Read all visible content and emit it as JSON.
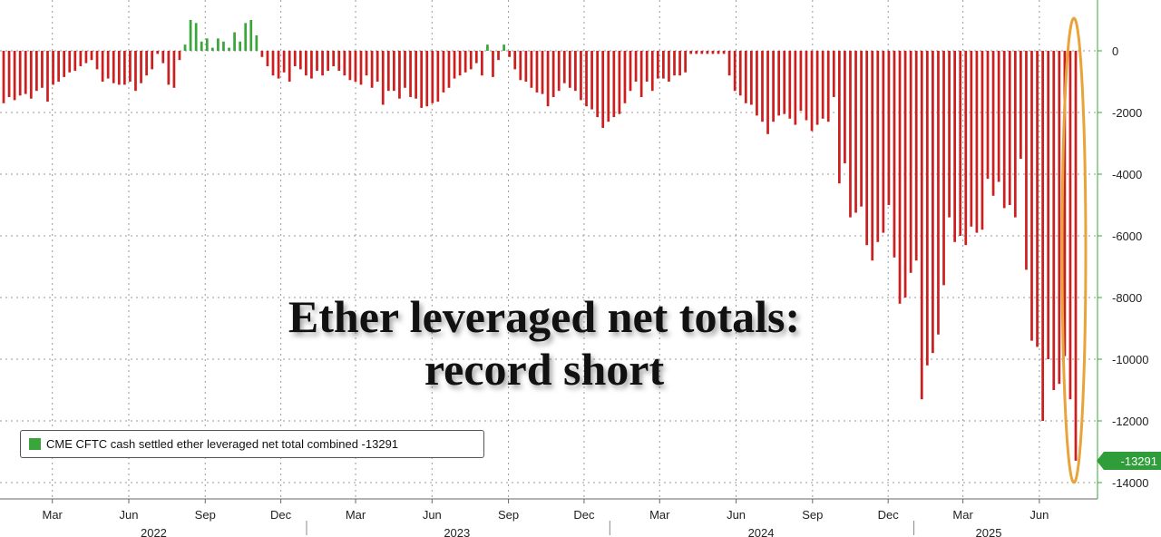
{
  "chart_data": {
    "type": "bar",
    "title": "Ether leveraged net totals:",
    "subtitle": "record short",
    "series": [
      {
        "name": "CME CFTC cash settled ether leveraged net total combined",
        "last_value_label": "-13291",
        "values": [
          -1700,
          -1500,
          -1600,
          -1450,
          -1400,
          -1550,
          -1300,
          -1200,
          -1650,
          -1100,
          -1000,
          -850,
          -700,
          -650,
          -500,
          -400,
          -300,
          -600,
          -1000,
          -900,
          -1050,
          -1100,
          -1100,
          -1000,
          -1300,
          -1050,
          -800,
          -600,
          -100,
          -400,
          -1100,
          -1200,
          -300,
          200,
          1000,
          900,
          300,
          400,
          100,
          400,
          300,
          100,
          600,
          300,
          900,
          1000,
          500,
          -200,
          -500,
          -800,
          -900,
          -700,
          -1000,
          -500,
          -600,
          -800,
          -900,
          -650,
          -800,
          -650,
          -500,
          -650,
          -800,
          -950,
          -1000,
          -1100,
          -800,
          -1200,
          -1000,
          -1750,
          -1300,
          -1300,
          -1550,
          -1200,
          -1500,
          -1550,
          -1850,
          -1800,
          -1700,
          -1650,
          -1350,
          -1200,
          -900,
          -800,
          -700,
          -600,
          -400,
          -800,
          200,
          -850,
          -300,
          200,
          -200,
          -600,
          -950,
          -1000,
          -1200,
          -1350,
          -1400,
          -1800,
          -1500,
          -1300,
          -1050,
          -1200,
          -1300,
          -1600,
          -1800,
          -1900,
          -2150,
          -2500,
          -2300,
          -2150,
          -2050,
          -1700,
          -1300,
          -1000,
          -1500,
          -1000,
          -1300,
          -900,
          -900,
          -1000,
          -800,
          -800,
          -700,
          -100,
          -100,
          -100,
          -100,
          -100,
          -100,
          -100,
          -800,
          -1300,
          -1450,
          -1700,
          -1750,
          -2100,
          -2300,
          -2700,
          -2300,
          -2100,
          -2050,
          -2200,
          -2400,
          -1950,
          -2250,
          -2600,
          -2400,
          -2200,
          -2300,
          -1500,
          -4300,
          -3650,
          -5400,
          -5250,
          -5050,
          -6300,
          -6800,
          -6200,
          -5900,
          -5000,
          -6700,
          -8200,
          -8000,
          -7200,
          -6800,
          -11300,
          -10200,
          -9800,
          -9200,
          -7600,
          -5400,
          -6200,
          -6000,
          -6300,
          -5700,
          -5900,
          -5800,
          -4150,
          -4700,
          -4250,
          -5100,
          -5000,
          -5400,
          -3500,
          -7100,
          -9400,
          -9600,
          -12000,
          -10000,
          -11000,
          -10800,
          -9900,
          -11300,
          -13291
        ],
        "color_negative": "#cc1f1f",
        "color_positive": "#3aa53a"
      }
    ],
    "ylim": [
      -14000,
      1000
    ],
    "yticks": [
      "0",
      "-2000",
      "-4000",
      "-6000",
      "-8000",
      "-10000",
      "-12000",
      "-14000"
    ],
    "ytick_values": [
      0,
      -2000,
      -4000,
      -6000,
      -8000,
      -10000,
      -12000,
      -14000
    ],
    "xticks": [
      "Mar",
      "Jun",
      "Sep",
      "Dec",
      "Mar",
      "Jun",
      "Sep",
      "Dec",
      "Mar",
      "Jun",
      "Sep",
      "Dec",
      "Mar",
      "Jun"
    ],
    "xtick_dates": [
      "2022-03-01",
      "2022-06-01",
      "2022-09-01",
      "2022-12-01",
      "2023-03-01",
      "2023-06-01",
      "2023-09-01",
      "2023-12-01",
      "2024-03-01",
      "2024-06-01",
      "2024-09-01",
      "2024-12-01",
      "2025-03-01",
      "2025-06-01"
    ],
    "years": [
      "2022",
      "2023",
      "2024",
      "2025"
    ],
    "year_dates": [
      "2022-07-01",
      "2023-07-01",
      "2024-07-01",
      "2025-04-01"
    ],
    "x_start": "2021-12-28",
    "x_end": "2025-08-10",
    "grid": true,
    "legend_position": "bottom-left",
    "highlight": "latest bars circled in orange"
  },
  "legend": {
    "label": "CME CFTC cash settled ether leveraged net total combined -13291"
  },
  "last_value_tag": "-13291",
  "title_lines": [
    "Ether leveraged net totals:",
    "record short"
  ]
}
